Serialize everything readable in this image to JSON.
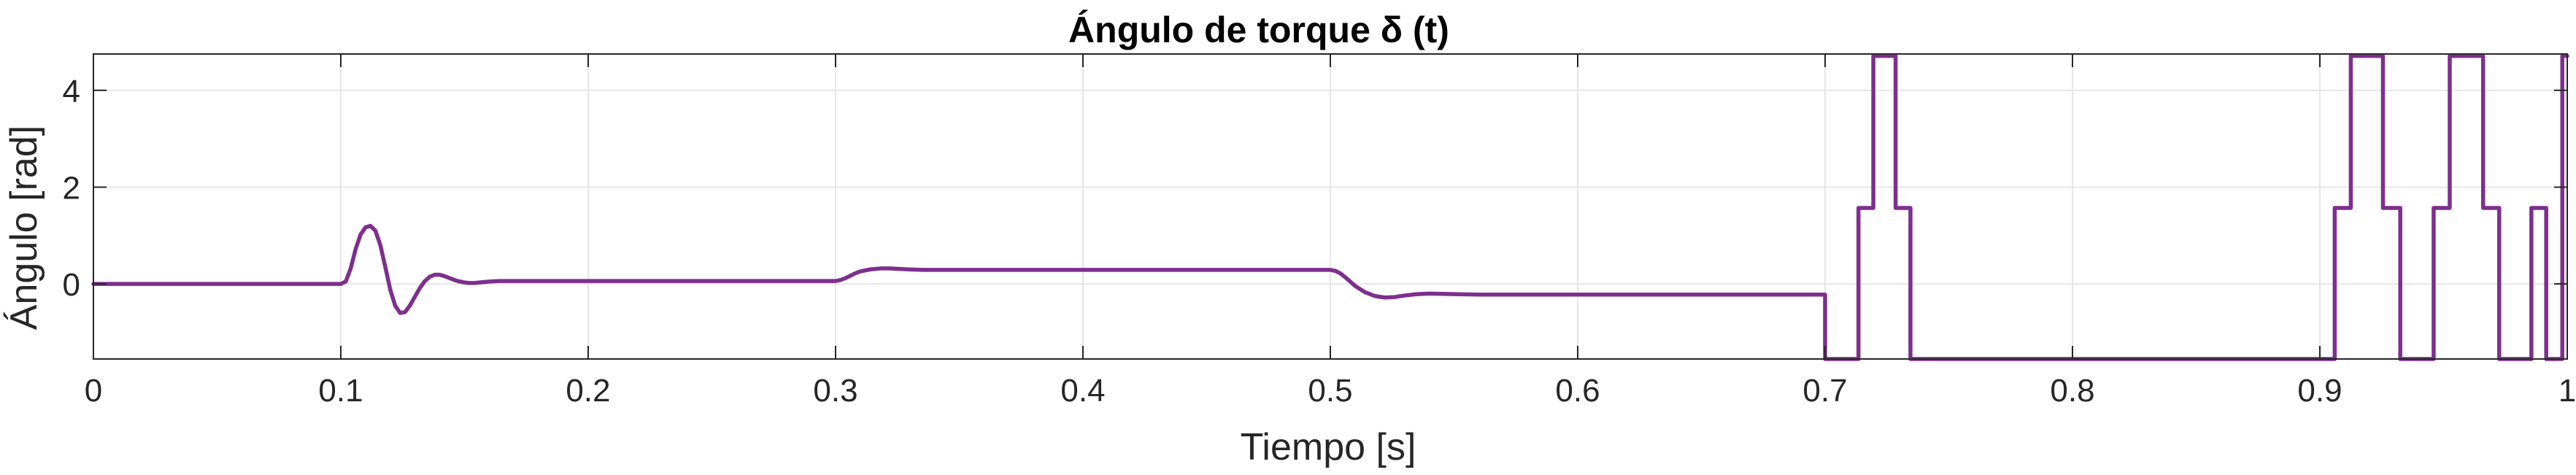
{
  "chart_data": {
    "type": "line",
    "title": "Ángulo de torque δ (t)",
    "xlabel": "Tiempo [s]",
    "ylabel": "Ángulo [rad]",
    "xlim": [
      0,
      1
    ],
    "ylim": [
      -1.55,
      4.75
    ],
    "xticks": [
      0,
      0.1,
      0.2,
      0.3,
      0.4,
      0.5,
      0.6,
      0.7,
      0.8,
      0.9,
      1
    ],
    "xtick_labels": [
      "0",
      "0.1",
      "0.2",
      "0.3",
      "0.4",
      "0.5",
      "0.6",
      "0.7",
      "0.8",
      "0.9",
      "1"
    ],
    "yticks": [
      0,
      2,
      4
    ],
    "ytick_labels": [
      "0",
      "2",
      "4"
    ],
    "grid": true,
    "line_color": "#7E2F8E",
    "series": [
      {
        "x": [
          0,
          0.1,
          0.102,
          0.104,
          0.106,
          0.108,
          0.11,
          0.112,
          0.114,
          0.116,
          0.118,
          0.12,
          0.122,
          0.124,
          0.126,
          0.128,
          0.13,
          0.132,
          0.134,
          0.136,
          0.138,
          0.14,
          0.142,
          0.144,
          0.146,
          0.148,
          0.15,
          0.152,
          0.154,
          0.156,
          0.158,
          0.16,
          0.164,
          0.168,
          0.172,
          0.176,
          0.18,
          0.19,
          0.2,
          0.25,
          0.3,
          0.302,
          0.304,
          0.306,
          0.308,
          0.31,
          0.314,
          0.318,
          0.322,
          0.326,
          0.33,
          0.335,
          0.34,
          0.35,
          0.36,
          0.4,
          0.45,
          0.5,
          0.502,
          0.504,
          0.506,
          0.508,
          0.51,
          0.514,
          0.518,
          0.522,
          0.526,
          0.53,
          0.535,
          0.54,
          0.55,
          0.56,
          0.6,
          0.65,
          0.699,
          0.7,
          0.7,
          0.7135,
          0.7135,
          0.7195,
          0.7195,
          0.7285,
          0.7285,
          0.7345,
          0.7345,
          0.906,
          0.906,
          0.9125,
          0.9125,
          0.9255,
          0.9255,
          0.9325,
          0.9325,
          0.946,
          0.946,
          0.9525,
          0.9525,
          0.966,
          0.966,
          0.9725,
          0.9725,
          0.9855,
          0.9855,
          0.9915,
          0.9915,
          0.998,
          0.998,
          1.0
        ],
        "y": [
          0,
          0,
          0.05,
          0.32,
          0.72,
          1.02,
          1.17,
          1.2,
          1.1,
          0.8,
          0.35,
          -0.12,
          -0.45,
          -0.6,
          -0.58,
          -0.44,
          -0.26,
          -0.08,
          0.06,
          0.15,
          0.19,
          0.19,
          0.16,
          0.12,
          0.08,
          0.05,
          0.03,
          0.02,
          0.02,
          0.03,
          0.04,
          0.05,
          0.06,
          0.06,
          0.06,
          0.06,
          0.06,
          0.06,
          0.06,
          0.06,
          0.06,
          0.08,
          0.12,
          0.17,
          0.22,
          0.26,
          0.3,
          0.32,
          0.32,
          0.31,
          0.3,
          0.29,
          0.29,
          0.29,
          0.29,
          0.29,
          0.29,
          0.29,
          0.27,
          0.22,
          0.14,
          0.05,
          -0.04,
          -0.17,
          -0.25,
          -0.28,
          -0.27,
          -0.24,
          -0.21,
          -0.2,
          -0.21,
          -0.22,
          -0.22,
          -0.22,
          -0.22,
          -0.22,
          -1.55,
          -1.55,
          1.57,
          1.57,
          4.71,
          4.71,
          1.57,
          1.57,
          -1.55,
          -1.55,
          1.57,
          1.57,
          4.71,
          4.71,
          1.57,
          1.57,
          -1.55,
          -1.55,
          1.57,
          1.57,
          4.71,
          4.71,
          1.57,
          1.57,
          -1.55,
          -1.55,
          1.57,
          1.57,
          -1.55,
          -1.55,
          4.71,
          4.71
        ]
      }
    ]
  }
}
